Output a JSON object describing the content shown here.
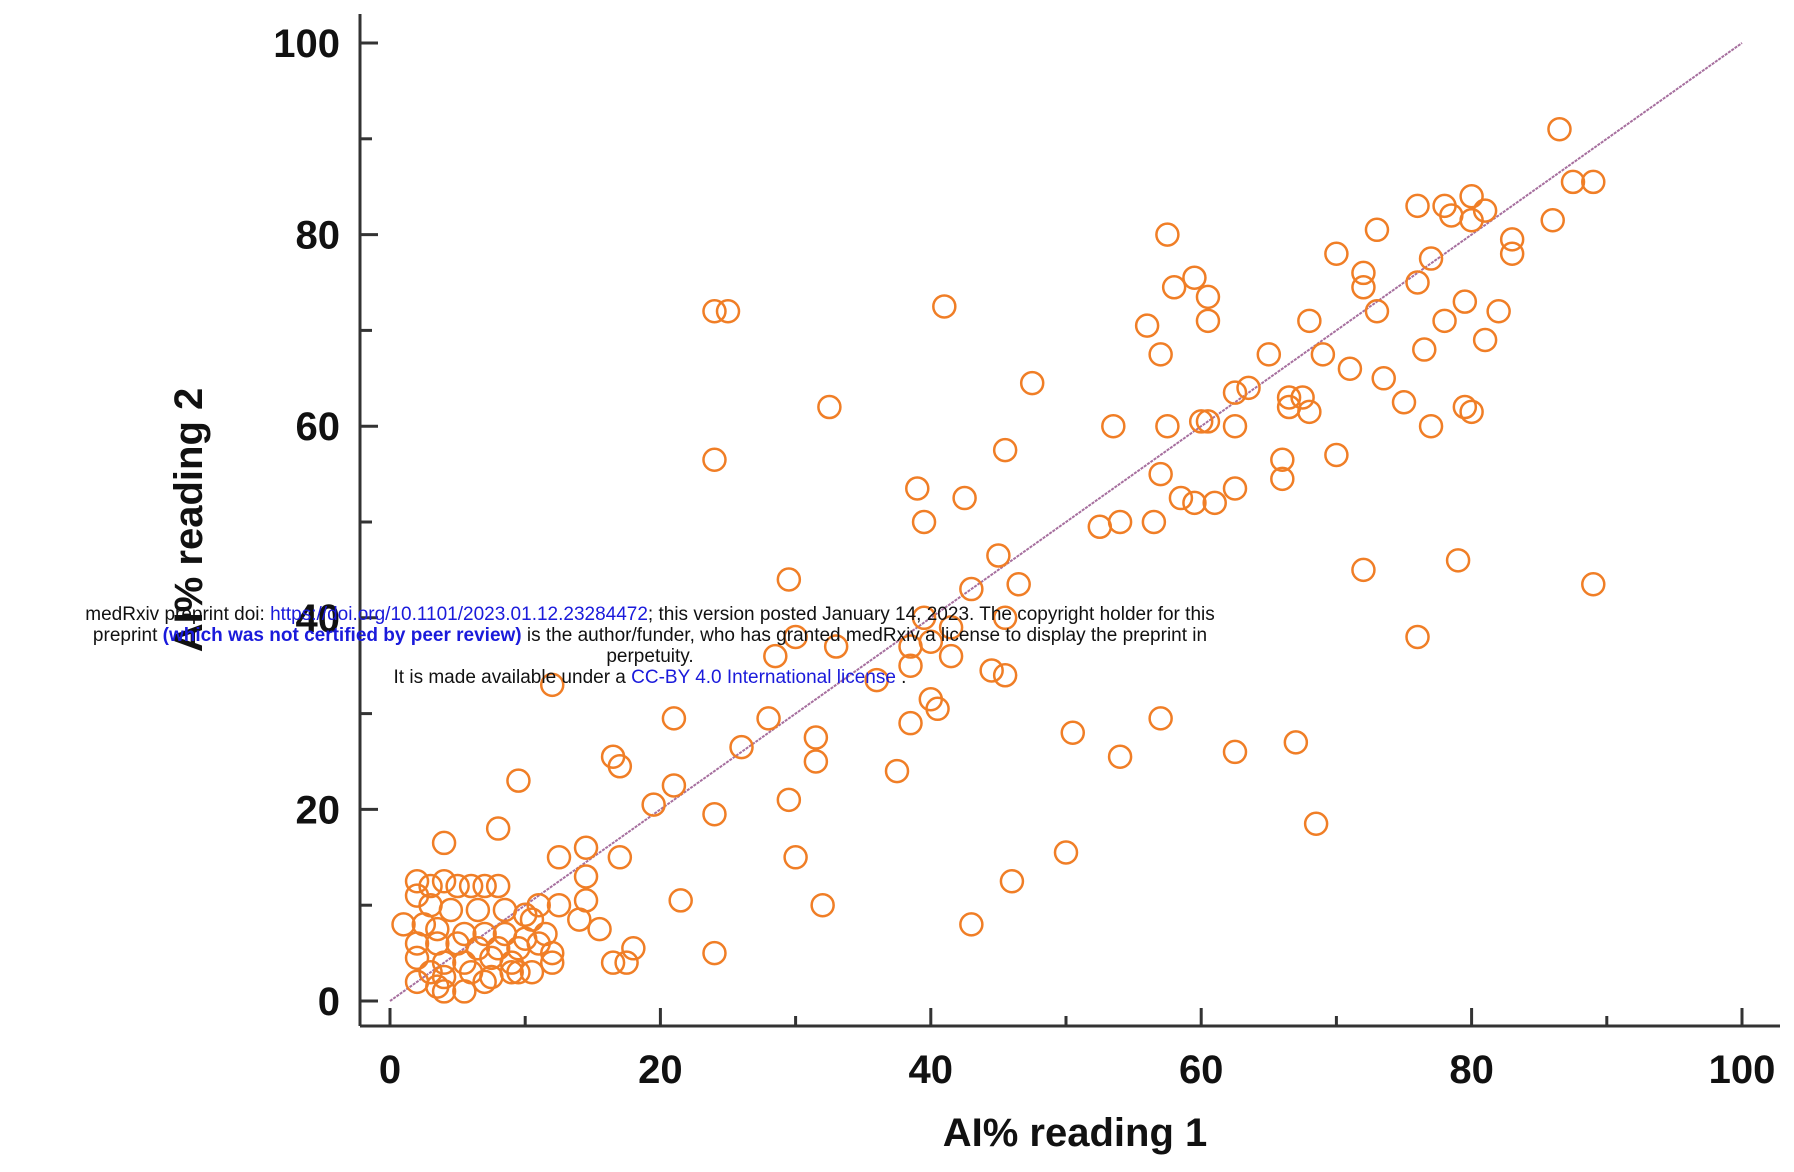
{
  "chart_data": {
    "type": "scatter",
    "xlabel": "AI% reading 1",
    "ylabel": "AI% reading 2",
    "xlim": [
      0,
      100
    ],
    "ylim": [
      0,
      100
    ],
    "x_ticks": [
      "0",
      "20",
      "40",
      "60",
      "80",
      "100"
    ],
    "y_ticks": [
      "0",
      "20",
      "40",
      "60",
      "80",
      "100"
    ],
    "identity_line": true,
    "marker_color": "#f07e26",
    "line_color": "#a66f9e",
    "points": [
      [
        24,
        72
      ],
      [
        25,
        72
      ],
      [
        24,
        56.5
      ],
      [
        32.5,
        62
      ],
      [
        41,
        72.5
      ],
      [
        47.5,
        64.5
      ],
      [
        57.5,
        80
      ],
      [
        58,
        74.5
      ],
      [
        59.5,
        75.5
      ],
      [
        60.5,
        73.5
      ],
      [
        60.5,
        71
      ],
      [
        56,
        70.5
      ],
      [
        57,
        67.5
      ],
      [
        65,
        67.5
      ],
      [
        68,
        71
      ],
      [
        69,
        67.5
      ],
      [
        71,
        66
      ],
      [
        70,
        78
      ],
      [
        72,
        76
      ],
      [
        72,
        74.5
      ],
      [
        73,
        80.5
      ],
      [
        73,
        72
      ],
      [
        73.5,
        65
      ],
      [
        75,
        62.5
      ],
      [
        76,
        75
      ],
      [
        76,
        83
      ],
      [
        77,
        77.5
      ],
      [
        76.5,
        68
      ],
      [
        77,
        60
      ],
      [
        78,
        83
      ],
      [
        78,
        71
      ],
      [
        78.5,
        82
      ],
      [
        79.5,
        73
      ],
      [
        80,
        84
      ],
      [
        80,
        81.5
      ],
      [
        81,
        82.5
      ],
      [
        81,
        69
      ],
      [
        82,
        72
      ],
      [
        83,
        79.5
      ],
      [
        83,
        78
      ],
      [
        86,
        81.5
      ],
      [
        86.5,
        91
      ],
      [
        87.5,
        85.5
      ],
      [
        89,
        85.5
      ],
      [
        79.5,
        62
      ],
      [
        80,
        61.5
      ],
      [
        66.5,
        62
      ],
      [
        66.5,
        63
      ],
      [
        67.5,
        63
      ],
      [
        68,
        61.5
      ],
      [
        66,
        56.5
      ],
      [
        66,
        54.5
      ],
      [
        62.5,
        63.5
      ],
      [
        62.5,
        60
      ],
      [
        63.5,
        64
      ],
      [
        60,
        60.5
      ],
      [
        60.5,
        60.5
      ],
      [
        57.5,
        60
      ],
      [
        53.5,
        60
      ],
      [
        57,
        55
      ],
      [
        58.5,
        52.5
      ],
      [
        59.5,
        52
      ],
      [
        61,
        52
      ],
      [
        62.5,
        53.5
      ],
      [
        70,
        57
      ],
      [
        52.5,
        49.5
      ],
      [
        54,
        50
      ],
      [
        56.5,
        50
      ],
      [
        39,
        53.5
      ],
      [
        42.5,
        52.5
      ],
      [
        39.5,
        50
      ],
      [
        45.5,
        57.5
      ],
      [
        45,
        46.5
      ],
      [
        46.5,
        43.5
      ],
      [
        43,
        43
      ],
      [
        29.5,
        44
      ],
      [
        39.5,
        40
      ],
      [
        41.5,
        39
      ],
      [
        40,
        37.5
      ],
      [
        38.5,
        37
      ],
      [
        38.5,
        35
      ],
      [
        41.5,
        36
      ],
      [
        44.5,
        34.5
      ],
      [
        45.5,
        34
      ],
      [
        45.5,
        40
      ],
      [
        33,
        37
      ],
      [
        30,
        38
      ],
      [
        28.5,
        36
      ],
      [
        36,
        33.5
      ],
      [
        40,
        31.5
      ],
      [
        40.5,
        30.5
      ],
      [
        38.5,
        29
      ],
      [
        31.5,
        27.5
      ],
      [
        31.5,
        25
      ],
      [
        28,
        29.5
      ],
      [
        26,
        26.5
      ],
      [
        21,
        29.5
      ],
      [
        37.5,
        24
      ],
      [
        29.5,
        21
      ],
      [
        30,
        15
      ],
      [
        32,
        10
      ],
      [
        43,
        8
      ],
      [
        46,
        12.5
      ],
      [
        50,
        15.5
      ],
      [
        50.5,
        28
      ],
      [
        54,
        25.5
      ],
      [
        57,
        29.5
      ],
      [
        62.5,
        26
      ],
      [
        67,
        27
      ],
      [
        68.5,
        18.5
      ],
      [
        72,
        45
      ],
      [
        79,
        46
      ],
      [
        76,
        38
      ],
      [
        89,
        43.5
      ],
      [
        12,
        33
      ],
      [
        9.5,
        23
      ],
      [
        16.5,
        25.5
      ],
      [
        17,
        24.5
      ],
      [
        19.5,
        20.5
      ],
      [
        21,
        22.5
      ],
      [
        24,
        19.5
      ],
      [
        21.5,
        10.5
      ],
      [
        24,
        5
      ],
      [
        17,
        15
      ],
      [
        14.5,
        16
      ],
      [
        14.5,
        13
      ],
      [
        12.5,
        15
      ],
      [
        15.5,
        7.5
      ],
      [
        14.5,
        10.5
      ],
      [
        14,
        8.5
      ],
      [
        12.5,
        10
      ],
      [
        18,
        5.5
      ],
      [
        16.5,
        4
      ],
      [
        17.5,
        4
      ],
      [
        8,
        18
      ],
      [
        4,
        16.5
      ],
      [
        2,
        12.5
      ],
      [
        3,
        12
      ],
      [
        4,
        12.5
      ],
      [
        5,
        12
      ],
      [
        6,
        12
      ],
      [
        7,
        12
      ],
      [
        8,
        12
      ],
      [
        2,
        11
      ],
      [
        3,
        10
      ],
      [
        4.5,
        9.5
      ],
      [
        6.5,
        9.5
      ],
      [
        8.5,
        9.5
      ],
      [
        10,
        9
      ],
      [
        11,
        10
      ],
      [
        10.5,
        8.5
      ],
      [
        11.5,
        7
      ],
      [
        1,
        8
      ],
      [
        2.5,
        8
      ],
      [
        3.5,
        7.5
      ],
      [
        5.5,
        7
      ],
      [
        7,
        7
      ],
      [
        8.5,
        7
      ],
      [
        10,
        6.5
      ],
      [
        2,
        6
      ],
      [
        3.5,
        6
      ],
      [
        5,
        6
      ],
      [
        6.5,
        5.5
      ],
      [
        8,
        5.5
      ],
      [
        9.5,
        5.5
      ],
      [
        11,
        6
      ],
      [
        2,
        4.5
      ],
      [
        4,
        4
      ],
      [
        5.5,
        4
      ],
      [
        7.5,
        4.5
      ],
      [
        9,
        4
      ],
      [
        12,
        5
      ],
      [
        3,
        3
      ],
      [
        4,
        2.5
      ],
      [
        6,
        3
      ],
      [
        7.5,
        2.5
      ],
      [
        9,
        3
      ],
      [
        10.5,
        3
      ],
      [
        12,
        4
      ],
      [
        2,
        2
      ],
      [
        3.5,
        1.5
      ],
      [
        5.5,
        1
      ],
      [
        7,
        2
      ],
      [
        4,
        1
      ],
      [
        9.5,
        3
      ]
    ]
  },
  "preprint_notice": {
    "line1_prefix": "medRxiv preprint doi: ",
    "doi_link": "https://doi.org/10.1101/2023.01.12.23284472",
    "line1_suffix": "; this version posted January 14, 2023. The copyright holder for this",
    "line2_prefix": "preprint ",
    "line2_bold": "(which was not certified by peer review)",
    "line2_suffix": " is the author/funder, who has granted medRxiv a license to display the preprint in",
    "line3": "perpetuity.",
    "line4_prefix": "It is made available under a ",
    "license_link": "CC-BY 4.0 International license",
    "line4_suffix": " ."
  }
}
